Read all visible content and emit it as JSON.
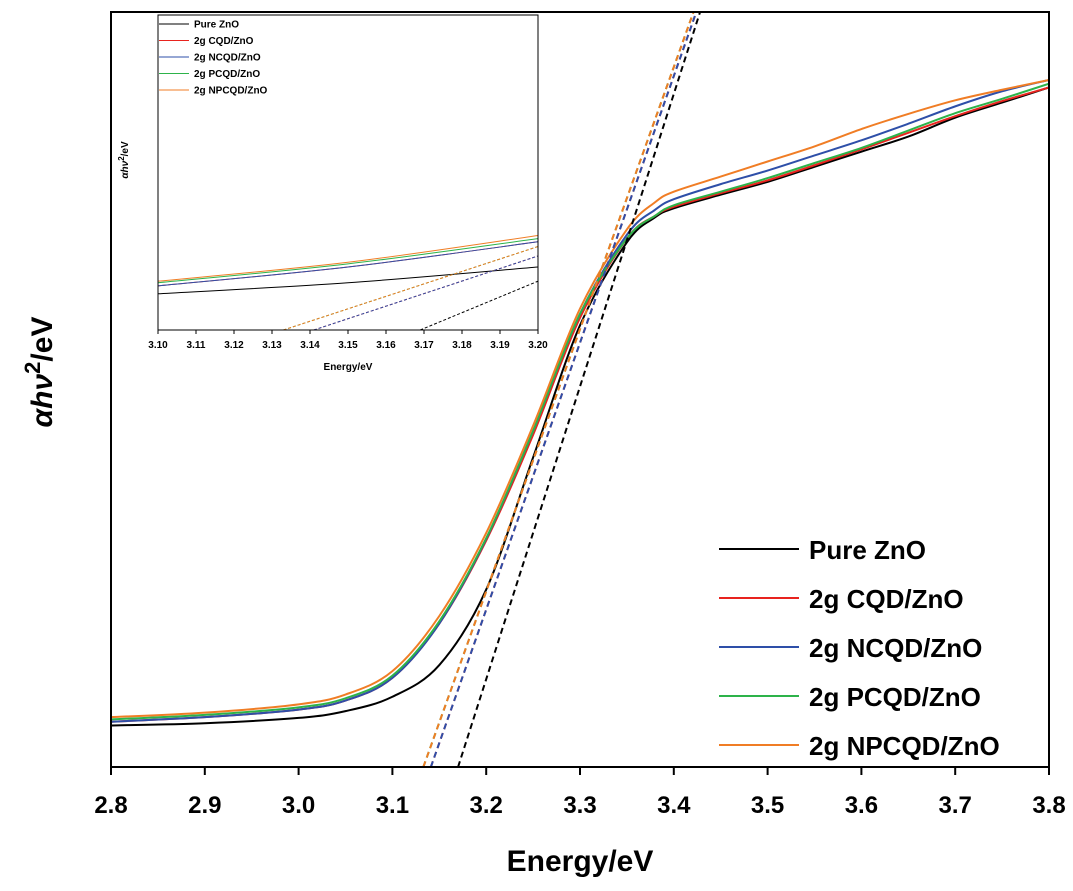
{
  "chart_data": [
    {
      "type": "line",
      "xlabel": "Energy/eV",
      "ylabel_parts": [
        "αhν",
        "2",
        "/eV"
      ],
      "xlim": [
        2.8,
        3.8
      ],
      "xticks": [
        "2.8",
        "2.9",
        "3.0",
        "3.1",
        "3.2",
        "3.3",
        "3.4",
        "3.5",
        "3.6",
        "3.7",
        "3.8"
      ],
      "ylim": [
        0,
        1
      ],
      "legend_position": "bottom-right",
      "series": [
        {
          "name": "Pure ZnO",
          "color": "#000000",
          "x": [
            2.8,
            2.9,
            3.0,
            3.05,
            3.1,
            3.15,
            3.2,
            3.25,
            3.3,
            3.35,
            3.38,
            3.4,
            3.45,
            3.5,
            3.55,
            3.6,
            3.65,
            3.7,
            3.75,
            3.8
          ],
          "y": [
            0.055,
            0.058,
            0.065,
            0.074,
            0.093,
            0.135,
            0.235,
            0.41,
            0.585,
            0.695,
            0.728,
            0.74,
            0.758,
            0.775,
            0.795,
            0.815,
            0.835,
            0.86,
            0.88,
            0.9
          ]
        },
        {
          "name": "2g CQD/ZnO",
          "color": "#e8231e",
          "x": [
            2.8,
            2.9,
            3.0,
            3.05,
            3.1,
            3.15,
            3.2,
            3.25,
            3.3,
            3.35,
            3.38,
            3.4,
            3.45,
            3.5,
            3.55,
            3.6,
            3.65,
            3.7,
            3.75,
            3.8
          ],
          "y": [
            0.06,
            0.066,
            0.076,
            0.088,
            0.118,
            0.19,
            0.3,
            0.44,
            0.595,
            0.7,
            0.73,
            0.742,
            0.76,
            0.777,
            0.797,
            0.818,
            0.84,
            0.862,
            0.882,
            0.9
          ]
        },
        {
          "name": "2g NCQD/ZnO",
          "color": "#2e4fa8",
          "x": [
            2.8,
            2.9,
            3.0,
            3.05,
            3.1,
            3.15,
            3.2,
            3.25,
            3.3,
            3.35,
            3.38,
            3.4,
            3.45,
            3.5,
            3.55,
            3.6,
            3.65,
            3.7,
            3.75,
            3.8
          ],
          "y": [
            0.06,
            0.066,
            0.076,
            0.088,
            0.118,
            0.19,
            0.302,
            0.445,
            0.6,
            0.705,
            0.738,
            0.752,
            0.772,
            0.79,
            0.81,
            0.83,
            0.852,
            0.875,
            0.895,
            0.91
          ]
        },
        {
          "name": "2g PCQD/ZnO",
          "color": "#2db34a",
          "x": [
            2.8,
            2.9,
            3.0,
            3.05,
            3.1,
            3.15,
            3.2,
            3.25,
            3.3,
            3.35,
            3.38,
            3.4,
            3.45,
            3.5,
            3.55,
            3.6,
            3.65,
            3.7,
            3.75,
            3.8
          ],
          "y": [
            0.063,
            0.069,
            0.079,
            0.091,
            0.121,
            0.193,
            0.303,
            0.445,
            0.6,
            0.7,
            0.73,
            0.744,
            0.762,
            0.78,
            0.8,
            0.82,
            0.843,
            0.866,
            0.885,
            0.905
          ]
        },
        {
          "name": "2g NPCQD/ZnO",
          "color": "#f07d25",
          "x": [
            2.8,
            2.9,
            3.0,
            3.05,
            3.1,
            3.15,
            3.2,
            3.25,
            3.3,
            3.35,
            3.38,
            3.4,
            3.45,
            3.5,
            3.55,
            3.6,
            3.65,
            3.7,
            3.75,
            3.8
          ],
          "y": [
            0.066,
            0.072,
            0.083,
            0.096,
            0.127,
            0.2,
            0.31,
            0.452,
            0.607,
            0.712,
            0.748,
            0.762,
            0.782,
            0.802,
            0.822,
            0.845,
            0.865,
            0.883,
            0.897,
            0.91
          ]
        }
      ],
      "tangents": [
        {
          "series": "Pure ZnO",
          "color": "#000000",
          "x": [
            3.17,
            3.428
          ],
          "y": [
            0,
            1
          ]
        },
        {
          "series": "2g CQD/ZnO",
          "color": "#e8231e",
          "x": [
            3.141,
            3.424
          ],
          "y": [
            0,
            1
          ]
        },
        {
          "series": "2g NCQD/ZnO",
          "color": "#2e4fa8",
          "x": [
            3.141,
            3.424
          ],
          "y": [
            0,
            1
          ]
        },
        {
          "series": "2g PCQD/ZnO",
          "color": "#2db34a",
          "x": [
            3.133,
            3.421
          ],
          "y": [
            0,
            1
          ]
        },
        {
          "series": "2g NPCQD/ZnO",
          "color": "#f07d25",
          "x": [
            3.133,
            3.421
          ],
          "y": [
            0,
            1
          ]
        }
      ]
    },
    {
      "type": "line",
      "xlabel": "Energy/eV",
      "ylabel_parts": [
        "αhν",
        "2",
        "/eV"
      ],
      "xlim": [
        3.1,
        3.2
      ],
      "xticks": [
        "3.10",
        "3.11",
        "3.12",
        "3.13",
        "3.14",
        "3.15",
        "3.16",
        "3.17",
        "3.18",
        "3.19",
        "3.20"
      ],
      "ylim": [
        0,
        1
      ],
      "legend_position": "top-left",
      "series": [
        {
          "name": "Pure ZnO",
          "color": "#000000",
          "x": [
            3.1,
            3.15,
            3.2
          ],
          "y": [
            0.115,
            0.15,
            0.2
          ]
        },
        {
          "name": "2g CQD/ZnO",
          "color": "#e8231e",
          "x": [
            3.1,
            3.15,
            3.2
          ],
          "y": [
            0.14,
            0.2,
            0.28
          ]
        },
        {
          "name": "2g NCQD/ZnO",
          "color": "#2e4fa8",
          "x": [
            3.1,
            3.15,
            3.2
          ],
          "y": [
            0.14,
            0.2,
            0.28
          ]
        },
        {
          "name": "2g PCQD/ZnO",
          "color": "#2db34a",
          "x": [
            3.1,
            3.15,
            3.2
          ],
          "y": [
            0.15,
            0.21,
            0.29
          ]
        },
        {
          "name": "2g NPCQD/ZnO",
          "color": "#f07d25",
          "x": [
            3.1,
            3.15,
            3.2
          ],
          "y": [
            0.155,
            0.215,
            0.3
          ]
        }
      ],
      "tangents": [
        {
          "series": "Pure ZnO",
          "color": "#000000",
          "x": [
            3.169,
            3.2
          ],
          "y": [
            0,
            0.155
          ]
        },
        {
          "series": "2g CQD/ZnO",
          "color": "#e8231e",
          "x": [
            3.141,
            3.2
          ],
          "y": [
            0,
            0.235
          ]
        },
        {
          "series": "2g NCQD/ZnO",
          "color": "#2e4fa8",
          "x": [
            3.141,
            3.2
          ],
          "y": [
            0,
            0.235
          ]
        },
        {
          "series": "2g PCQD/ZnO",
          "color": "#2db34a",
          "x": [
            3.133,
            3.2
          ],
          "y": [
            0,
            0.265
          ]
        },
        {
          "series": "2g NPCQD/ZnO",
          "color": "#f07d25",
          "x": [
            3.133,
            3.2
          ],
          "y": [
            0,
            0.265
          ]
        }
      ]
    }
  ]
}
